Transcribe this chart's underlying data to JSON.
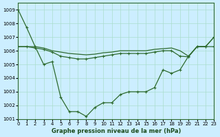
{
  "title": "Graphe pression niveau de la mer (hPa)",
  "bg_color": "#cceeff",
  "grid_color": "#aaddcc",
  "line_color": "#2d6a2d",
  "ylim": [
    1001,
    1009.5
  ],
  "xlim": [
    0,
    23
  ],
  "yticks": [
    1001,
    1002,
    1003,
    1004,
    1005,
    1006,
    1007,
    1008,
    1009
  ],
  "xticks": [
    0,
    1,
    2,
    3,
    4,
    5,
    6,
    7,
    8,
    9,
    10,
    11,
    12,
    13,
    14,
    15,
    16,
    17,
    18,
    19,
    20,
    21,
    22,
    23
  ],
  "line1_y": [
    1006.3,
    1006.3,
    1006.3,
    1006.2,
    1006.0,
    1005.9,
    1005.8,
    1005.75,
    1005.7,
    1005.75,
    1005.85,
    1005.9,
    1006.0,
    1006.0,
    1006.0,
    1006.0,
    1006.1,
    1006.15,
    1006.2,
    1006.0,
    1005.6,
    1006.3,
    1006.3,
    1007.0
  ],
  "line2_y": [
    1006.3,
    1006.3,
    1006.2,
    1006.1,
    1005.9,
    1005.6,
    1005.5,
    1005.4,
    1005.4,
    1005.5,
    1005.6,
    1005.7,
    1005.8,
    1005.8,
    1005.8,
    1005.8,
    1005.9,
    1006.0,
    1006.0,
    1005.6,
    1005.56,
    1006.3,
    1006.3,
    1006.3
  ],
  "line3_y": [
    1009.0,
    1007.7,
    1006.3,
    1005.0,
    1005.2,
    1002.6,
    1001.55,
    1001.55,
    1001.2,
    1001.85,
    1002.2,
    1002.2,
    1002.8,
    1003.0,
    1003.0,
    1003.0,
    1003.3,
    1004.6,
    1004.35,
    1004.6,
    1005.6,
    1006.3,
    1006.3,
    1007.0
  ]
}
